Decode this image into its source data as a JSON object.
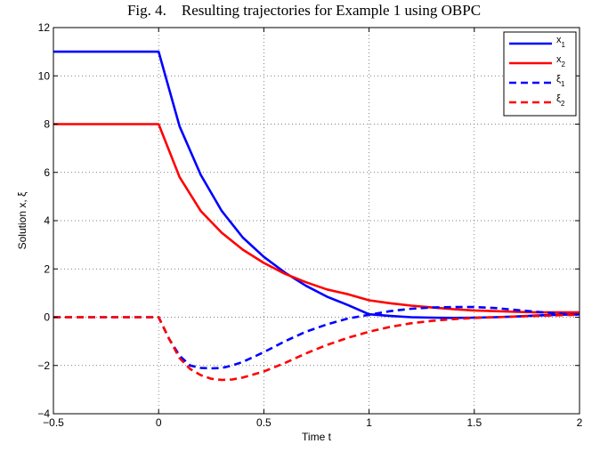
{
  "caption": "Fig. 4.    Resulting trajectories for Example 1 using OBPC",
  "chart_data": {
    "type": "line",
    "title": "",
    "xlabel": "Time t",
    "ylabel": "Solution x, ξ",
    "xlim": [
      -0.5,
      2
    ],
    "ylim": [
      -4,
      12
    ],
    "xticks": [
      -0.5,
      0,
      0.5,
      1,
      1.5,
      2
    ],
    "xtick_labels": [
      "−0.5",
      "0",
      "0.5",
      "1",
      "1.5",
      "2"
    ],
    "yticks": [
      -4,
      -2,
      0,
      2,
      4,
      6,
      8,
      10,
      12
    ],
    "ytick_labels": [
      "−4",
      "−2",
      "0",
      "2",
      "4",
      "6",
      "8",
      "10",
      "12"
    ],
    "grid": true,
    "legend_position": "top-right",
    "series": [
      {
        "name": "x1",
        "label_base": "x",
        "label_sub": "1",
        "color": "#0000ff",
        "style": "solid",
        "x": [
          -0.5,
          0,
          0.1,
          0.2,
          0.3,
          0.4,
          0.5,
          0.6,
          0.7,
          0.8,
          0.9,
          1.0,
          1.1,
          1.2,
          1.3,
          1.4,
          1.5,
          1.6,
          1.7,
          1.8,
          1.9,
          2.0
        ],
        "y": [
          11,
          11,
          7.9,
          5.9,
          4.4,
          3.3,
          2.5,
          1.85,
          1.3,
          0.85,
          0.5,
          0.12,
          0.05,
          0.0,
          -0.02,
          -0.03,
          -0.02,
          0.0,
          0.03,
          0.07,
          0.1,
          0.12
        ]
      },
      {
        "name": "x2",
        "label_base": "x",
        "label_sub": "2",
        "color": "#ff0000",
        "style": "solid",
        "x": [
          -0.5,
          0,
          0.1,
          0.2,
          0.3,
          0.4,
          0.5,
          0.6,
          0.7,
          0.8,
          0.9,
          1.0,
          1.1,
          1.2,
          1.3,
          1.4,
          1.5,
          1.6,
          1.7,
          1.8,
          1.9,
          2.0
        ],
        "y": [
          8,
          8,
          5.8,
          4.4,
          3.5,
          2.8,
          2.25,
          1.8,
          1.45,
          1.15,
          0.95,
          0.7,
          0.58,
          0.48,
          0.4,
          0.33,
          0.28,
          0.25,
          0.22,
          0.2,
          0.2,
          0.2
        ]
      },
      {
        "name": "ξ1",
        "label_base": "ξ",
        "label_sub": "1",
        "color": "#0000ff",
        "style": "dashed",
        "x": [
          -0.5,
          0,
          0.05,
          0.1,
          0.15,
          0.2,
          0.25,
          0.3,
          0.35,
          0.4,
          0.45,
          0.5,
          0.6,
          0.7,
          0.8,
          0.9,
          1.0,
          1.1,
          1.2,
          1.3,
          1.4,
          1.5,
          1.6,
          1.7,
          1.8,
          1.9,
          2.0
        ],
        "y": [
          0,
          0,
          -0.9,
          -1.6,
          -2.0,
          -2.1,
          -2.12,
          -2.1,
          -2.0,
          -1.85,
          -1.65,
          -1.45,
          -1.0,
          -0.6,
          -0.3,
          -0.05,
          0.1,
          0.25,
          0.35,
          0.4,
          0.42,
          0.42,
          0.38,
          0.3,
          0.22,
          0.15,
          0.1
        ]
      },
      {
        "name": "ξ2",
        "label_base": "ξ",
        "label_sub": "2",
        "color": "#ff0000",
        "style": "dashed",
        "x": [
          -0.5,
          0,
          0.05,
          0.1,
          0.15,
          0.2,
          0.25,
          0.3,
          0.35,
          0.4,
          0.5,
          0.6,
          0.7,
          0.8,
          0.9,
          1.0,
          1.1,
          1.2,
          1.3,
          1.4,
          1.5,
          1.6,
          1.7,
          1.8,
          1.9,
          2.0
        ],
        "y": [
          0,
          0,
          -0.9,
          -1.7,
          -2.15,
          -2.4,
          -2.55,
          -2.6,
          -2.58,
          -2.5,
          -2.25,
          -1.9,
          -1.5,
          -1.15,
          -0.85,
          -0.6,
          -0.4,
          -0.25,
          -0.15,
          -0.08,
          -0.03,
          0.0,
          0.03,
          0.05,
          0.08,
          0.1
        ]
      }
    ]
  }
}
